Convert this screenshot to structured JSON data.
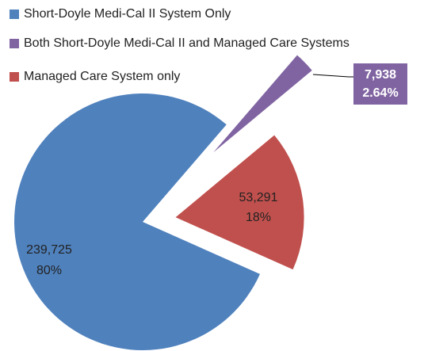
{
  "chart_data": {
    "type": "pie",
    "categories": [
      "Short-Doyle Medi-Cal II System Only",
      "Both Short-Doyle Medi-Cal II and Managed Care Systems",
      "Managed Care System only"
    ],
    "values": [
      239725,
      7938,
      53291
    ],
    "value_labels": [
      "239,725",
      "7,938",
      "53,291"
    ],
    "percent_labels": [
      "80%",
      "2.64%",
      "18%"
    ],
    "colors": [
      "#4f81bd",
      "#8064a2",
      "#c0504d"
    ],
    "legend": "top-left"
  }
}
